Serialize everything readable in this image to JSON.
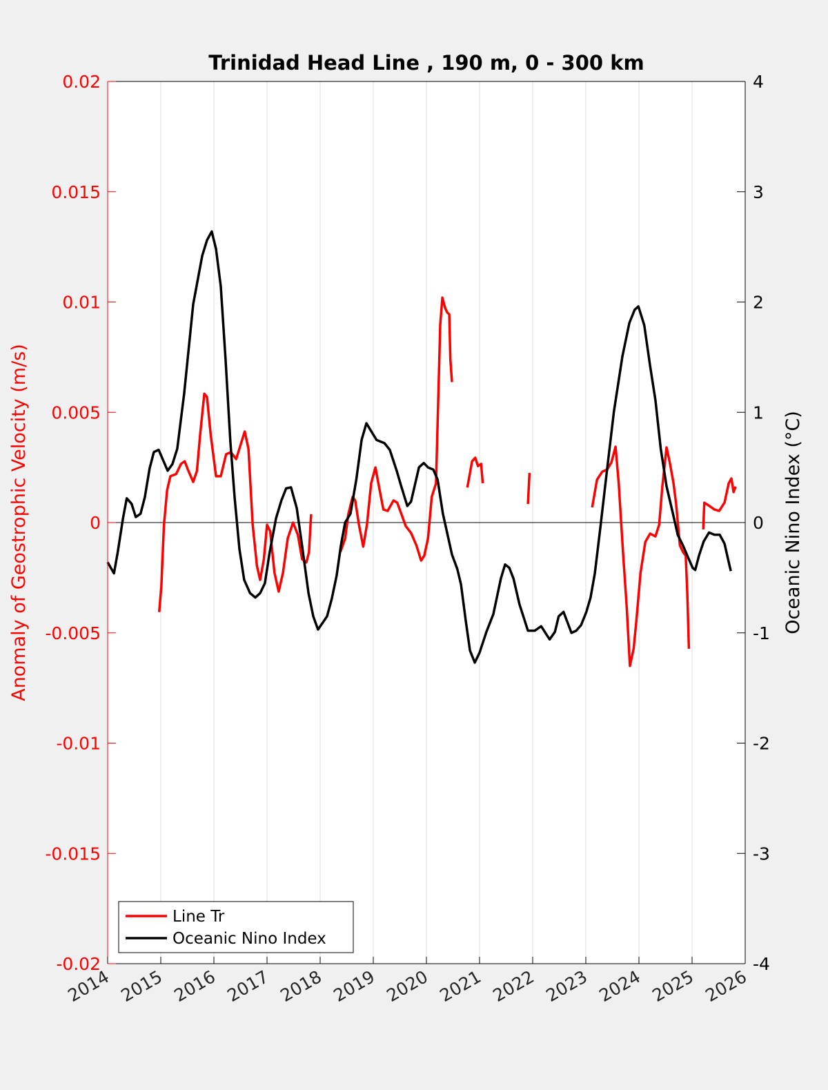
{
  "chart_data": {
    "type": "line",
    "title": "Trinidad Head Line , 190 m, 0 - 300 km",
    "xlabel": "",
    "ylabel_left": "Anomaly of Geostrophic Velocity (m/s)",
    "ylabel_right": "Oceanic Nino Index (°C)",
    "xlim": [
      2014,
      2026
    ],
    "ylim_left": [
      -0.02,
      0.02
    ],
    "ylim_right": [
      -4,
      4
    ],
    "xticks": [
      "2014",
      "2015",
      "2016",
      "2017",
      "2018",
      "2019",
      "2020",
      "2021",
      "2022",
      "2023",
      "2024",
      "2025",
      "2026"
    ],
    "yticks_left": [
      "0.02",
      "0.015",
      "0.01",
      "0.005",
      "0",
      "-0.005",
      "-0.01",
      "-0.015",
      "-0.02"
    ],
    "yticks_right": [
      "4",
      "3",
      "2",
      "1",
      "0",
      "-1",
      "-2",
      "-3",
      "-4"
    ],
    "grid": "vertical",
    "legend_position": "bottom-left",
    "colors": {
      "left_axis": "#ff0000",
      "line_tr": "#ff0000",
      "oni": "#000000"
    },
    "series": [
      {
        "name": "Line Tr",
        "axis": "left",
        "segments": [
          [
            [
              2014.97,
              -0.00406
            ],
            [
              2015.01,
              -0.0029
            ],
            [
              2015.06,
              -0.0001
            ],
            [
              2015.12,
              0.00147
            ],
            [
              2015.18,
              0.0021
            ],
            [
              2015.29,
              0.0022
            ],
            [
              2015.38,
              0.00266
            ],
            [
              2015.45,
              0.00278
            ],
            [
              2015.51,
              0.0024
            ],
            [
              2015.61,
              0.00184
            ],
            [
              2015.68,
              0.00234
            ],
            [
              2015.74,
              0.00397
            ],
            [
              2015.82,
              0.00584
            ],
            [
              2015.87,
              0.00569
            ],
            [
              2015.94,
              0.00397
            ],
            [
              2016.04,
              0.0021
            ],
            [
              2016.13,
              0.0021
            ],
            [
              2016.23,
              0.0031
            ],
            [
              2016.32,
              0.00319
            ],
            [
              2016.42,
              0.00288
            ],
            [
              2016.52,
              0.00366
            ],
            [
              2016.58,
              0.00413
            ],
            [
              2016.65,
              0.00334
            ],
            [
              2016.73,
              -0.0001
            ],
            [
              2016.81,
              -0.00197
            ],
            [
              2016.87,
              -0.0026
            ],
            [
              2016.94,
              -0.00166
            ],
            [
              2017.0,
              -0.0001
            ],
            [
              2017.06,
              -0.0004
            ],
            [
              2017.14,
              -0.00228
            ],
            [
              2017.22,
              -0.00313
            ],
            [
              2017.3,
              -0.00228
            ],
            [
              2017.39,
              -0.00072
            ],
            [
              2017.49,
              0.0
            ],
            [
              2017.58,
              -0.00056
            ],
            [
              2017.66,
              -0.00166
            ],
            [
              2017.74,
              -0.00181
            ],
            [
              2017.79,
              -0.00134
            ],
            [
              2017.83,
              0.00038
            ]
          ],
          [
            [
              2018.38,
              -0.00134
            ],
            [
              2018.47,
              -0.00072
            ],
            [
              2018.53,
              0.00038
            ],
            [
              2018.61,
              0.00116
            ],
            [
              2018.66,
              0.001
            ],
            [
              2018.73,
              -0.0001
            ],
            [
              2018.81,
              -0.00109
            ],
            [
              2018.88,
              -0.0001
            ],
            [
              2018.96,
              0.00178
            ],
            [
              2019.04,
              0.0025
            ],
            [
              2019.12,
              0.00147
            ],
            [
              2019.19,
              0.00059
            ],
            [
              2019.27,
              0.00053
            ],
            [
              2019.38,
              0.001
            ],
            [
              2019.45,
              0.0009
            ],
            [
              2019.53,
              0.00038
            ],
            [
              2019.61,
              -0.00016
            ],
            [
              2019.71,
              -0.00047
            ],
            [
              2019.81,
              -0.00103
            ],
            [
              2019.9,
              -0.00172
            ],
            [
              2019.96,
              -0.0015
            ],
            [
              2020.03,
              -0.00072
            ],
            [
              2020.1,
              0.00116
            ],
            [
              2020.18,
              0.00178
            ],
            [
              2020.26,
              0.00897
            ],
            [
              2020.3,
              0.0102
            ],
            [
              2020.35,
              0.00975
            ],
            [
              2020.39,
              0.00953
            ],
            [
              2020.43,
              0.00944
            ],
            [
              2020.45,
              0.0074
            ],
            [
              2020.48,
              0.00637
            ]
          ],
          [
            [
              2020.77,
              0.00159
            ],
            [
              2020.86,
              0.00278
            ],
            [
              2020.92,
              0.00294
            ],
            [
              2020.97,
              0.00256
            ],
            [
              2021.03,
              0.00266
            ],
            [
              2021.06,
              0.00178
            ]
          ],
          [
            [
              2021.91,
              0.00084
            ],
            [
              2021.94,
              0.00225
            ]
          ],
          [
            [
              2023.12,
              0.00069
            ],
            [
              2023.21,
              0.00194
            ],
            [
              2023.31,
              0.00231
            ],
            [
              2023.4,
              0.0024
            ],
            [
              2023.48,
              0.00272
            ],
            [
              2023.56,
              0.00344
            ],
            [
              2023.62,
              0.00178
            ],
            [
              2023.7,
              -0.00134
            ],
            [
              2023.77,
              -0.00384
            ],
            [
              2023.83,
              -0.0065
            ],
            [
              2023.9,
              -0.00572
            ],
            [
              2023.95,
              -0.00447
            ],
            [
              2024.03,
              -0.00228
            ],
            [
              2024.12,
              -0.00088
            ],
            [
              2024.21,
              -0.0005
            ],
            [
              2024.31,
              -0.00063
            ],
            [
              2024.38,
              -0.0001
            ],
            [
              2024.44,
              0.00163
            ],
            [
              2024.52,
              0.00341
            ],
            [
              2024.58,
              0.00272
            ],
            [
              2024.65,
              0.00178
            ],
            [
              2024.7,
              0.00084
            ],
            [
              2024.77,
              -0.00103
            ],
            [
              2024.83,
              -0.00134
            ],
            [
              2024.88,
              -0.0015
            ],
            [
              2024.91,
              -0.00322
            ],
            [
              2024.94,
              -0.00572
            ]
          ],
          [
            [
              2025.21,
              -0.00031
            ],
            [
              2025.23,
              0.0009
            ],
            [
              2025.31,
              0.00078
            ],
            [
              2025.42,
              0.00059
            ],
            [
              2025.51,
              0.00053
            ],
            [
              2025.61,
              0.0009
            ],
            [
              2025.69,
              0.00178
            ],
            [
              2025.74,
              0.002
            ],
            [
              2025.78,
              0.00138
            ],
            [
              2025.82,
              0.00163
            ]
          ]
        ]
      },
      {
        "name": "Oceanic Nino Index",
        "axis": "right",
        "segments": [
          [
            [
              2014.0,
              -0.36
            ],
            [
              2014.12,
              -0.46
            ],
            [
              2014.19,
              -0.27
            ],
            [
              2014.29,
              0.04
            ],
            [
              2014.36,
              0.22
            ],
            [
              2014.45,
              0.17
            ],
            [
              2014.53,
              0.05
            ],
            [
              2014.62,
              0.08
            ],
            [
              2014.7,
              0.23
            ],
            [
              2014.79,
              0.49
            ],
            [
              2014.87,
              0.64
            ],
            [
              2014.96,
              0.66
            ],
            [
              2015.13,
              0.47
            ],
            [
              2015.22,
              0.53
            ],
            [
              2015.31,
              0.67
            ],
            [
              2015.44,
              1.17
            ],
            [
              2015.61,
              1.98
            ],
            [
              2015.78,
              2.42
            ],
            [
              2015.87,
              2.56
            ],
            [
              2015.96,
              2.64
            ],
            [
              2016.04,
              2.48
            ],
            [
              2016.13,
              2.14
            ],
            [
              2016.22,
              1.48
            ],
            [
              2016.31,
              0.73
            ],
            [
              2016.39,
              0.23
            ],
            [
              2016.48,
              -0.24
            ],
            [
              2016.57,
              -0.52
            ],
            [
              2016.68,
              -0.64
            ],
            [
              2016.78,
              -0.68
            ],
            [
              2016.87,
              -0.64
            ],
            [
              2016.96,
              -0.55
            ],
            [
              2017.05,
              -0.27
            ],
            [
              2017.17,
              0.04
            ],
            [
              2017.27,
              0.2
            ],
            [
              2017.36,
              0.31
            ],
            [
              2017.45,
              0.32
            ],
            [
              2017.56,
              0.13
            ],
            [
              2017.66,
              -0.21
            ],
            [
              2017.78,
              -0.64
            ],
            [
              2017.87,
              -0.85
            ],
            [
              2017.96,
              -0.97
            ],
            [
              2018.13,
              -0.85
            ],
            [
              2018.22,
              -0.69
            ],
            [
              2018.31,
              -0.48
            ],
            [
              2018.39,
              -0.21
            ],
            [
              2018.47,
              0.0
            ],
            [
              2018.57,
              0.08
            ],
            [
              2018.68,
              0.39
            ],
            [
              2018.78,
              0.75
            ],
            [
              2018.87,
              0.9
            ],
            [
              2018.96,
              0.83
            ],
            [
              2019.06,
              0.75
            ],
            [
              2019.21,
              0.72
            ],
            [
              2019.31,
              0.66
            ],
            [
              2019.44,
              0.47
            ],
            [
              2019.52,
              0.34
            ],
            [
              2019.64,
              0.15
            ],
            [
              2019.71,
              0.19
            ],
            [
              2019.86,
              0.5
            ],
            [
              2019.95,
              0.54
            ],
            [
              2020.03,
              0.5
            ],
            [
              2020.13,
              0.48
            ],
            [
              2020.21,
              0.39
            ],
            [
              2020.31,
              0.08
            ],
            [
              2020.48,
              -0.29
            ],
            [
              2020.58,
              -0.42
            ],
            [
              2020.65,
              -0.56
            ],
            [
              2020.74,
              -0.89
            ],
            [
              2020.82,
              -1.16
            ],
            [
              2020.91,
              -1.27
            ],
            [
              2021.0,
              -1.18
            ],
            [
              2021.13,
              -0.99
            ],
            [
              2021.26,
              -0.83
            ],
            [
              2021.4,
              -0.51
            ],
            [
              2021.48,
              -0.38
            ],
            [
              2021.56,
              -0.41
            ],
            [
              2021.64,
              -0.51
            ],
            [
              2021.75,
              -0.74
            ],
            [
              2021.91,
              -0.98
            ],
            [
              2022.04,
              -0.98
            ],
            [
              2022.16,
              -0.94
            ],
            [
              2022.32,
              -1.06
            ],
            [
              2022.42,
              -0.99
            ],
            [
              2022.49,
              -0.85
            ],
            [
              2022.58,
              -0.81
            ],
            [
              2022.73,
              -1.0
            ],
            [
              2022.82,
              -0.98
            ],
            [
              2022.91,
              -0.93
            ],
            [
              2023.01,
              -0.81
            ],
            [
              2023.09,
              -0.68
            ],
            [
              2023.17,
              -0.46
            ],
            [
              2023.27,
              -0.06
            ],
            [
              2023.4,
              0.48
            ],
            [
              2023.53,
              1.01
            ],
            [
              2023.69,
              1.51
            ],
            [
              2023.82,
              1.81
            ],
            [
              2023.92,
              1.93
            ],
            [
              2023.99,
              1.96
            ],
            [
              2024.1,
              1.79
            ],
            [
              2024.21,
              1.42
            ],
            [
              2024.31,
              1.11
            ],
            [
              2024.41,
              0.67
            ],
            [
              2024.52,
              0.33
            ],
            [
              2024.64,
              0.08
            ],
            [
              2024.73,
              -0.11
            ],
            [
              2024.83,
              -0.21
            ],
            [
              2024.91,
              -0.3
            ],
            [
              2025.01,
              -0.41
            ],
            [
              2025.06,
              -0.43
            ],
            [
              2025.13,
              -0.3
            ],
            [
              2025.22,
              -0.17
            ],
            [
              2025.32,
              -0.09
            ],
            [
              2025.42,
              -0.11
            ],
            [
              2025.52,
              -0.11
            ],
            [
              2025.61,
              -0.19
            ],
            [
              2025.7,
              -0.38
            ],
            [
              2025.73,
              -0.44
            ]
          ]
        ]
      }
    ]
  }
}
